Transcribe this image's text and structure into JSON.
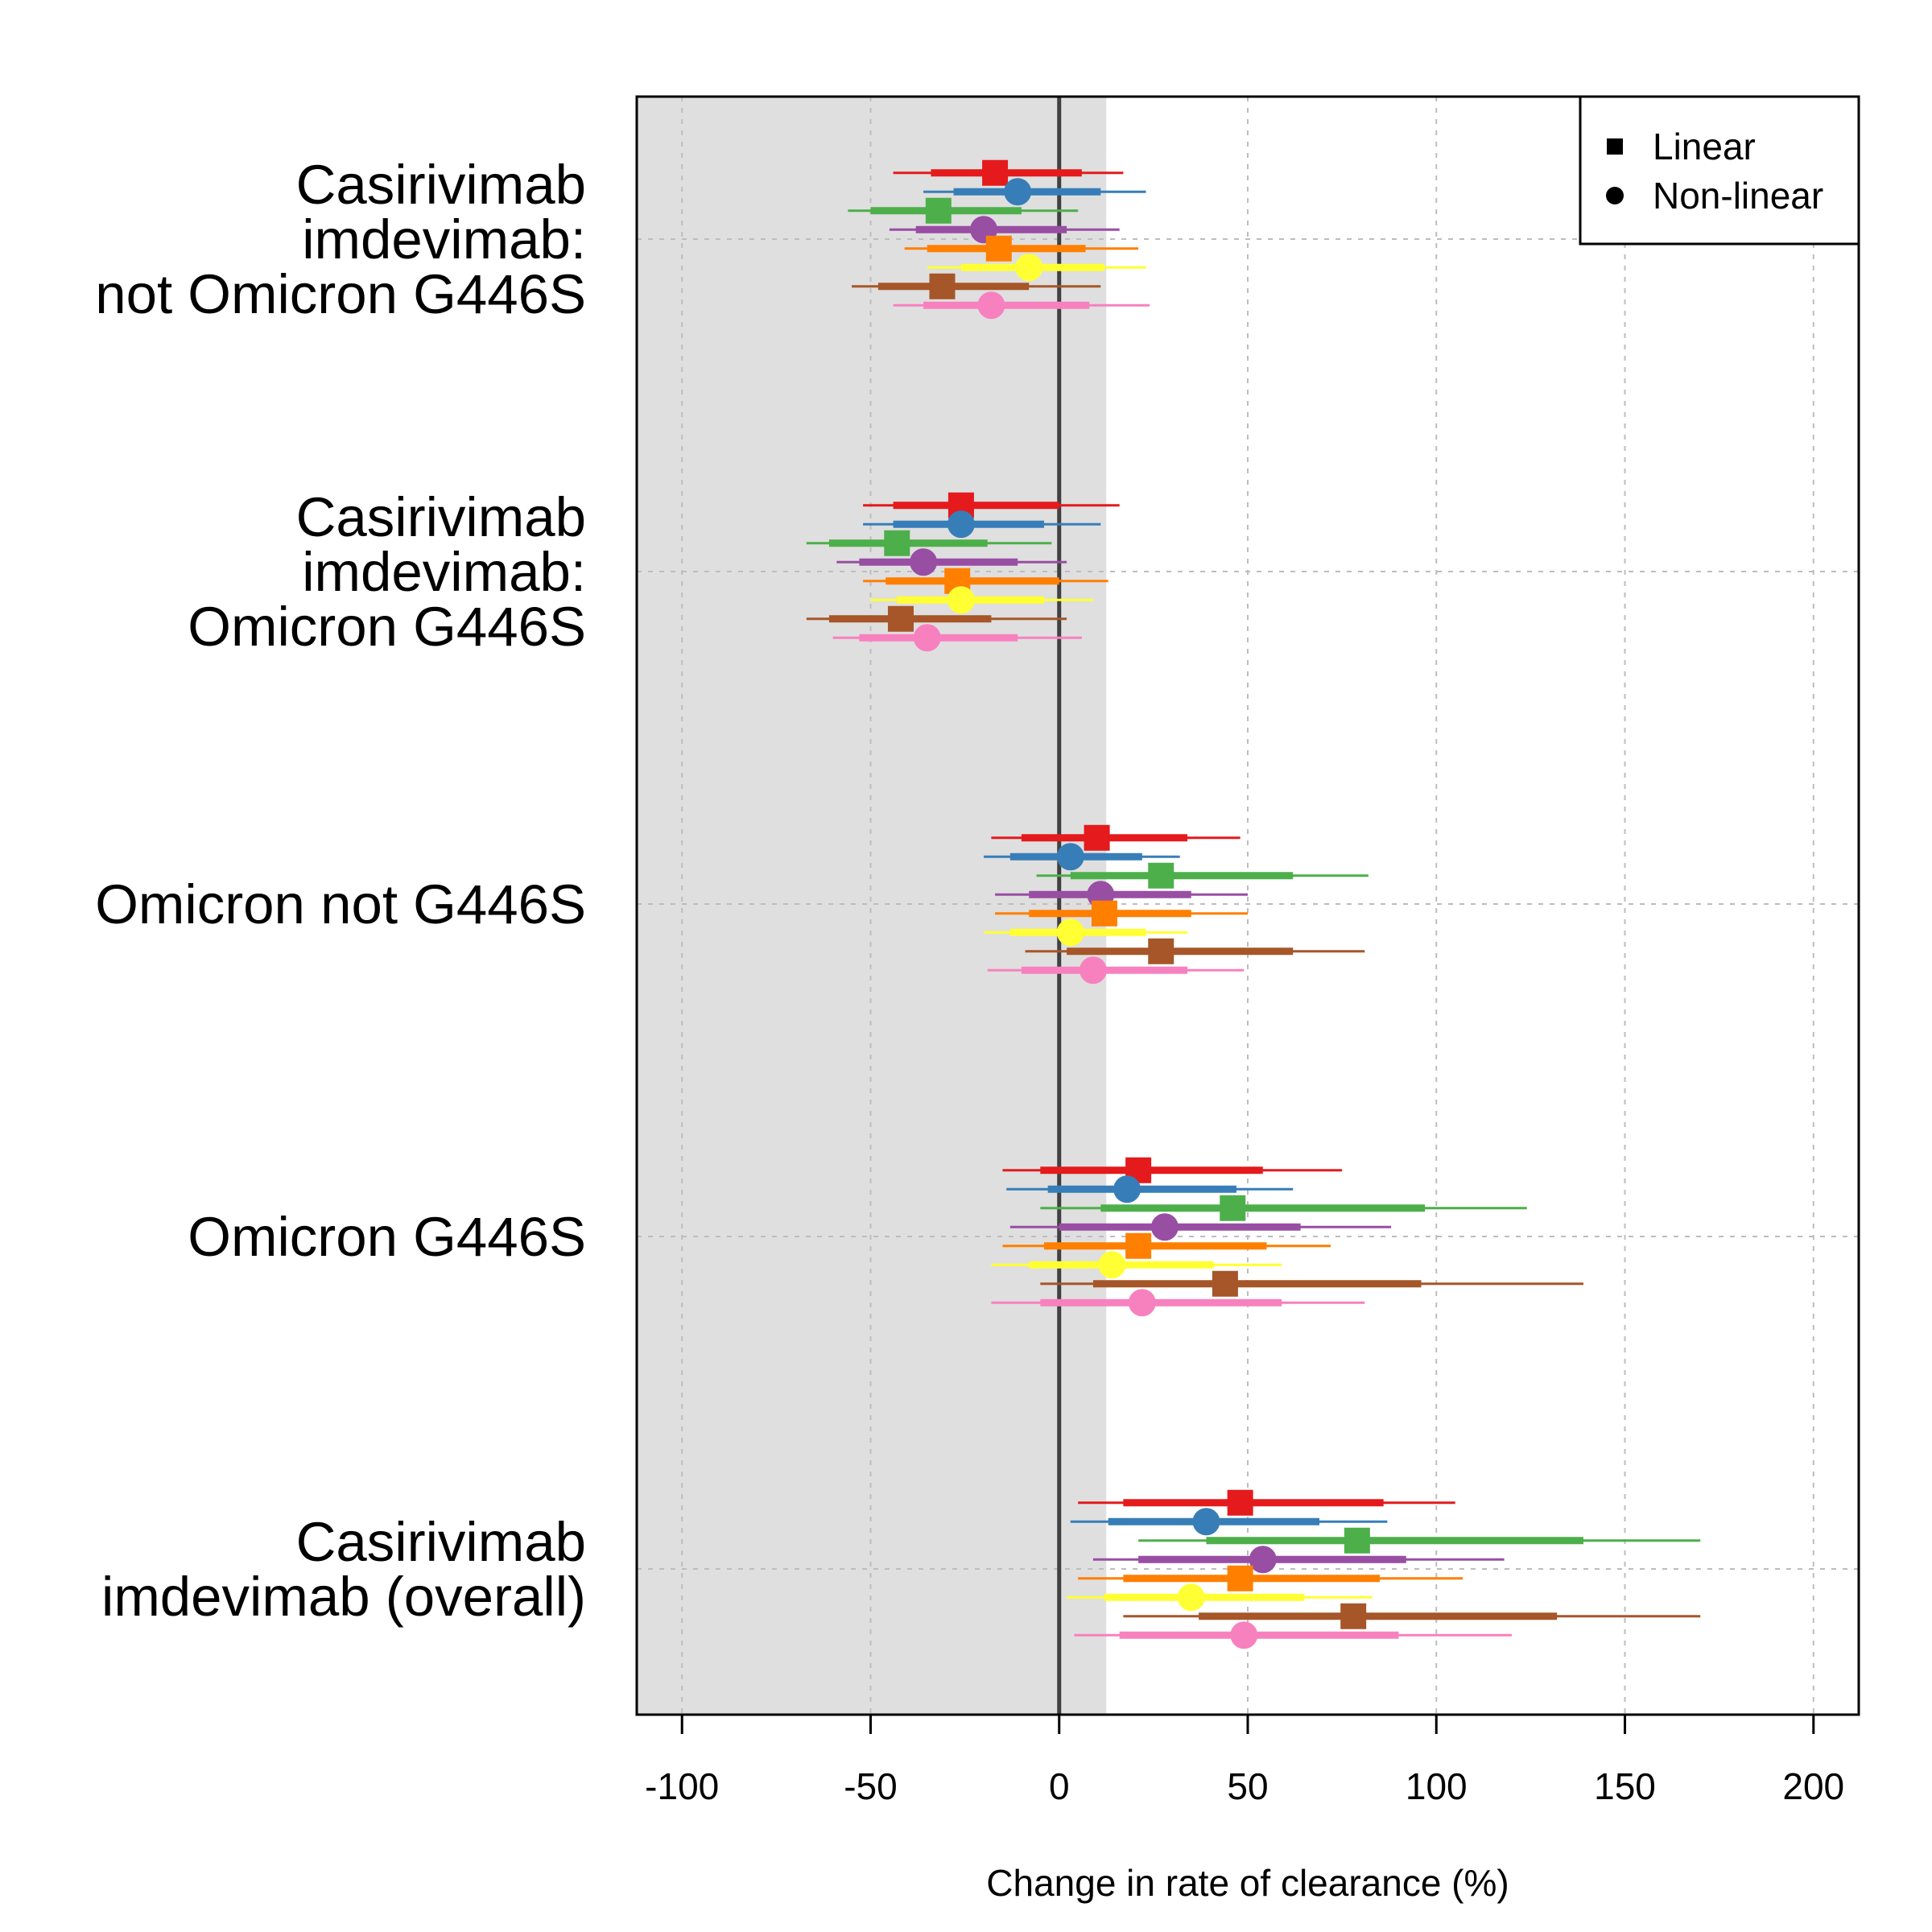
{
  "chart_data": {
    "type": "forest",
    "title": "",
    "xlabel": "Change in rate of clearance (%)",
    "ylabel": "",
    "xlim": [
      -112,
      212
    ],
    "xticks": [
      -100,
      -50,
      0,
      50,
      100,
      150,
      200
    ],
    "xtick_labels": [
      "-100",
      "-50",
      "0",
      "50",
      "100",
      "150",
      "200"
    ],
    "reference_line": 0,
    "shaded_region": [
      -112,
      12.5
    ],
    "grid": true,
    "legend": {
      "position": "top-right",
      "entries": [
        {
          "label": "Linear",
          "marker": "square"
        },
        {
          "label": "Non-linear",
          "marker": "circle"
        }
      ]
    },
    "models": [
      {
        "id": "m1",
        "color": "#E41A1C",
        "marker": "square"
      },
      {
        "id": "m2",
        "color": "#377EB8",
        "marker": "circle"
      },
      {
        "id": "m3",
        "color": "#4DAF4A",
        "marker": "square"
      },
      {
        "id": "m4",
        "color": "#984EA3",
        "marker": "circle"
      },
      {
        "id": "m5",
        "color": "#FF7F00",
        "marker": "square"
      },
      {
        "id": "m6",
        "color": "#FFFF33",
        "marker": "circle"
      },
      {
        "id": "m7",
        "color": "#A65628",
        "marker": "square"
      },
      {
        "id": "m8",
        "color": "#F781BF",
        "marker": "circle"
      }
    ],
    "groups": [
      {
        "label_lines": [
          "Casirivimab",
          "imdevimab:",
          "not Omicron G446S"
        ],
        "estimates": [
          {
            "est": -17,
            "lo80": -34,
            "hi80": 6,
            "lo95": -44,
            "hi95": 17
          },
          {
            "est": -11,
            "lo80": -28,
            "hi80": 11,
            "lo95": -36,
            "hi95": 23
          },
          {
            "est": -32,
            "lo80": -50,
            "hi80": -10,
            "lo95": -56,
            "hi95": 5
          },
          {
            "est": -20,
            "lo80": -38,
            "hi80": 2,
            "lo95": -45,
            "hi95": 16
          },
          {
            "est": -16,
            "lo80": -35,
            "hi80": 7,
            "lo95": -41,
            "hi95": 21
          },
          {
            "est": -8,
            "lo80": -26,
            "hi80": 12,
            "lo95": -35,
            "hi95": 23
          },
          {
            "est": -31,
            "lo80": -48,
            "hi80": -8,
            "lo95": -55,
            "hi95": 11
          },
          {
            "est": -18,
            "lo80": -36,
            "hi80": 8,
            "lo95": -44,
            "hi95": 24
          }
        ]
      },
      {
        "label_lines": [
          "Casirivimab",
          "imdevimab:",
          "Omicron G446S"
        ],
        "estimates": [
          {
            "est": -26,
            "lo80": -44,
            "hi80": 0,
            "lo95": -52,
            "hi95": 16
          },
          {
            "est": -26,
            "lo80": -44,
            "hi80": -4,
            "lo95": -52,
            "hi95": 11
          },
          {
            "est": -43,
            "lo80": -61,
            "hi80": -19,
            "lo95": -67,
            "hi95": -2
          },
          {
            "est": -36,
            "lo80": -53,
            "hi80": -11,
            "lo95": -59,
            "hi95": 2
          },
          {
            "est": -27,
            "lo80": -46,
            "hi80": 0,
            "lo95": -52,
            "hi95": 13
          },
          {
            "est": -26,
            "lo80": -43,
            "hi80": -4,
            "lo95": -50,
            "hi95": 9
          },
          {
            "est": -42,
            "lo80": -61,
            "hi80": -18,
            "lo95": -67,
            "hi95": 2
          },
          {
            "est": -35,
            "lo80": -53,
            "hi80": -11,
            "lo95": -60,
            "hi95": 6
          }
        ]
      },
      {
        "label_lines": [
          "Omicron not G446S"
        ],
        "estimates": [
          {
            "est": 10,
            "lo80": -10,
            "hi80": 34,
            "lo95": -18,
            "hi95": 48
          },
          {
            "est": 3,
            "lo80": -13,
            "hi80": 22,
            "lo95": -20,
            "hi95": 32
          },
          {
            "est": 27,
            "lo80": 3,
            "hi80": 62,
            "lo95": -6,
            "hi95": 82
          },
          {
            "est": 11,
            "lo80": -8,
            "hi80": 35,
            "lo95": -17,
            "hi95": 50
          },
          {
            "est": 12,
            "lo80": -8,
            "hi80": 35,
            "lo95": -17,
            "hi95": 50
          },
          {
            "est": 3,
            "lo80": -13,
            "hi80": 23,
            "lo95": -20,
            "hi95": 34
          },
          {
            "est": 27,
            "lo80": 2,
            "hi80": 62,
            "lo95": -9,
            "hi95": 81
          },
          {
            "est": 9,
            "lo80": -10,
            "hi80": 34,
            "lo95": -19,
            "hi95": 49
          }
        ]
      },
      {
        "label_lines": [
          "Omicron G446S"
        ],
        "estimates": [
          {
            "est": 21,
            "lo80": -5,
            "hi80": 54,
            "lo95": -15,
            "hi95": 75
          },
          {
            "est": 18,
            "lo80": -3,
            "hi80": 47,
            "lo95": -14,
            "hi95": 62
          },
          {
            "est": 46,
            "lo80": 11,
            "hi80": 97,
            "lo95": -5,
            "hi95": 124
          },
          {
            "est": 28,
            "lo80": 0,
            "hi80": 64,
            "lo95": -13,
            "hi95": 88
          },
          {
            "est": 21,
            "lo80": -4,
            "hi80": 55,
            "lo95": -15,
            "hi95": 72
          },
          {
            "est": 14,
            "lo80": -8,
            "hi80": 41,
            "lo95": -18,
            "hi95": 59
          },
          {
            "est": 44,
            "lo80": 9,
            "hi80": 96,
            "lo95": -5,
            "hi95": 139
          },
          {
            "est": 22,
            "lo80": -5,
            "hi80": 59,
            "lo95": -18,
            "hi95": 81
          }
        ]
      },
      {
        "label_lines": [
          "Casirivimab",
          "imdevimab (overall)"
        ],
        "estimates": [
          {
            "est": 48,
            "lo80": 17,
            "hi80": 86,
            "lo95": 5,
            "hi95": 105
          },
          {
            "est": 39,
            "lo80": 13,
            "hi80": 69,
            "lo95": 3,
            "hi95": 87
          },
          {
            "est": 79,
            "lo80": 39,
            "hi80": 139,
            "lo95": 21,
            "hi95": 170
          },
          {
            "est": 54,
            "lo80": 21,
            "hi80": 92,
            "lo95": 9,
            "hi95": 118
          },
          {
            "est": 48,
            "lo80": 17,
            "hi80": 85,
            "lo95": 5,
            "hi95": 107
          },
          {
            "est": 35,
            "lo80": 12,
            "hi80": 65,
            "lo95": 2,
            "hi95": 83
          },
          {
            "est": 78,
            "lo80": 37,
            "hi80": 132,
            "lo95": 17,
            "hi95": 170
          },
          {
            "est": 49,
            "lo80": 16,
            "hi80": 90,
            "lo95": 4,
            "hi95": 120
          }
        ]
      }
    ]
  }
}
